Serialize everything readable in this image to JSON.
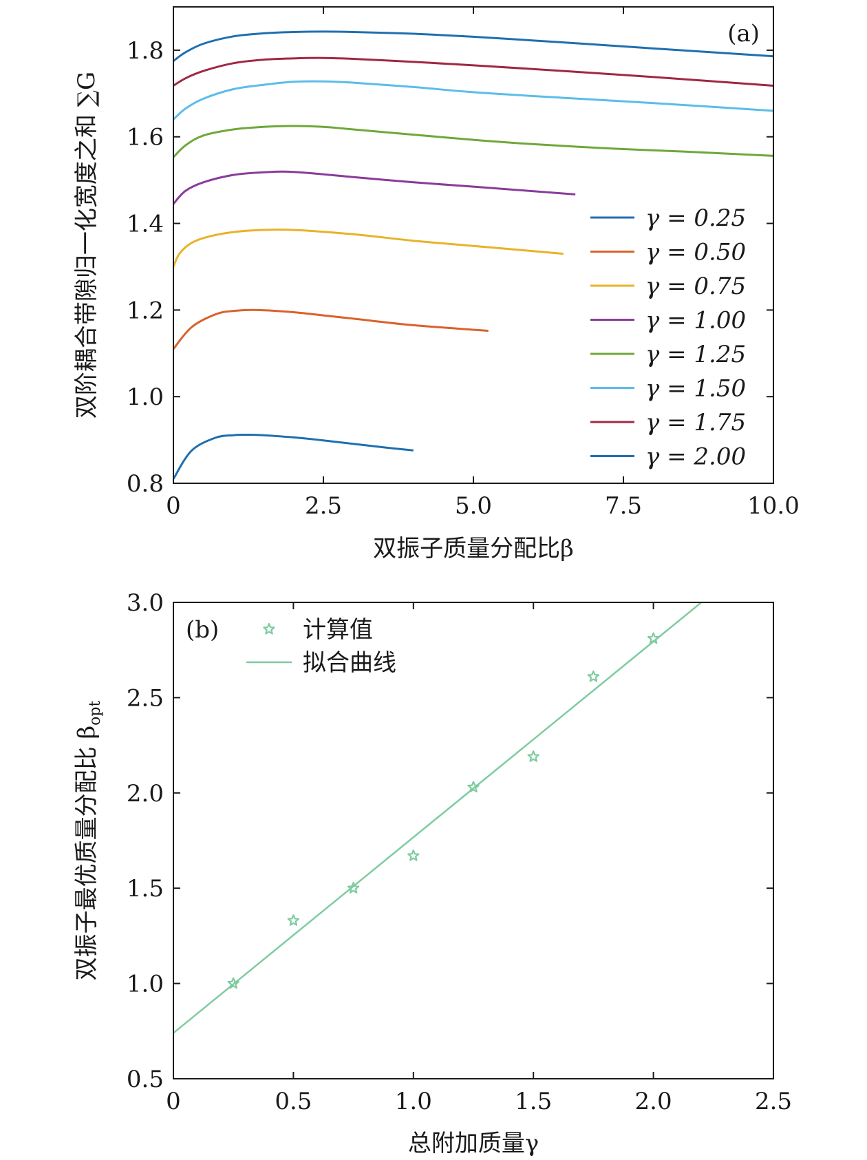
{
  "chart_data": [
    {
      "type": "line",
      "panel": "(a)",
      "xlabel": "双振子质量分配比β",
      "ylabel": "双阶耦合带隙归一化宽度之和 ∑G",
      "xlim": [
        0,
        10
      ],
      "ylim": [
        0.8,
        1.9
      ],
      "xticks": [
        0,
        2.5,
        5.0,
        7.5,
        10.0
      ],
      "xtick_labels": [
        "0",
        "2.5",
        "5.0",
        "7.5",
        "10.0"
      ],
      "yticks": [
        0.8,
        1.0,
        1.2,
        1.4,
        1.6,
        1.8
      ],
      "ytick_labels": [
        "0.8",
        "1.0",
        "1.2",
        "1.4",
        "1.6",
        "1.8"
      ],
      "grid": false,
      "legend_position": "right",
      "series": [
        {
          "name": "γ = 0.25",
          "color": "#1f6fb0",
          "x": [
            0,
            0.3,
            0.7,
            1.0,
            1.2,
            1.5,
            2.0,
            2.5,
            3.0,
            3.5,
            4.0
          ],
          "y": [
            0.81,
            0.875,
            0.905,
            0.911,
            0.912,
            0.911,
            0.906,
            0.899,
            0.891,
            0.883,
            0.876
          ]
        },
        {
          "name": "γ = 0.50",
          "color": "#d9622b",
          "x": [
            0,
            0.3,
            0.7,
            1.0,
            1.4,
            2.0,
            3.0,
            4.0,
            5.25
          ],
          "y": [
            1.11,
            1.16,
            1.19,
            1.198,
            1.2,
            1.195,
            1.18,
            1.165,
            1.152
          ]
        },
        {
          "name": "γ = 0.75",
          "color": "#e8b22a",
          "x": [
            0,
            0.1,
            0.3,
            0.6,
            1.0,
            1.5,
            2.0,
            3.0,
            4.0,
            5.0,
            6.5
          ],
          "y": [
            1.3,
            1.33,
            1.355,
            1.37,
            1.38,
            1.385,
            1.385,
            1.375,
            1.36,
            1.348,
            1.33
          ]
        },
        {
          "name": "γ = 1.00",
          "color": "#8a3b9a",
          "x": [
            0,
            0.2,
            0.5,
            1.0,
            1.5,
            2.0,
            3.0,
            4.0,
            5.0,
            6.7
          ],
          "y": [
            1.445,
            1.475,
            1.495,
            1.512,
            1.518,
            1.519,
            1.507,
            1.495,
            1.485,
            1.467
          ]
        },
        {
          "name": "γ = 1.25",
          "color": "#6ea83a",
          "x": [
            0,
            0.2,
            0.5,
            1.0,
            1.5,
            2.0,
            2.5,
            3.0,
            4.0,
            5.0,
            6.0,
            7.3,
            8.5,
            10.0
          ],
          "y": [
            1.553,
            1.58,
            1.603,
            1.617,
            1.623,
            1.625,
            1.623,
            1.617,
            1.605,
            1.593,
            1.583,
            1.573,
            1.566,
            1.556
          ]
        },
        {
          "name": "γ = 1.50",
          "color": "#5bbde8",
          "x": [
            0,
            0.2,
            0.5,
            1.0,
            1.5,
            2.0,
            2.5,
            3.0,
            4.0,
            5.0,
            6.5,
            8.0,
            10.0
          ],
          "y": [
            1.64,
            1.665,
            1.688,
            1.71,
            1.72,
            1.727,
            1.728,
            1.725,
            1.715,
            1.703,
            1.69,
            1.678,
            1.66
          ]
        },
        {
          "name": "γ = 1.75",
          "color": "#a02842",
          "x": [
            0,
            0.2,
            0.5,
            1.0,
            1.5,
            2.0,
            2.5,
            3.0,
            4.0,
            5.0,
            6.5,
            8.0,
            10.0
          ],
          "y": [
            1.718,
            1.735,
            1.752,
            1.77,
            1.778,
            1.781,
            1.782,
            1.78,
            1.773,
            1.765,
            1.752,
            1.738,
            1.718
          ]
        },
        {
          "name": "γ = 2.00",
          "color": "#1f6fb0",
          "x": [
            0,
            0.2,
            0.5,
            1.0,
            1.5,
            2.0,
            2.5,
            3.0,
            4.0,
            5.0,
            6.5,
            8.0,
            10.0
          ],
          "y": [
            1.775,
            1.795,
            1.815,
            1.832,
            1.839,
            1.842,
            1.843,
            1.842,
            1.838,
            1.831,
            1.818,
            1.804,
            1.786
          ]
        }
      ]
    },
    {
      "type": "scatter",
      "panel": "(b)",
      "xlabel": "总附加质量γ",
      "ylabel": "双振子最优质量分配比 β",
      "ylabel_subscript": "opt",
      "xlim": [
        0,
        2.5
      ],
      "ylim": [
        0.5,
        3.0
      ],
      "xticks": [
        0,
        0.5,
        1.0,
        1.5,
        2.0,
        2.5
      ],
      "xtick_labels": [
        "0",
        "0.5",
        "1.0",
        "1.5",
        "2.0",
        "2.5"
      ],
      "yticks": [
        0.5,
        1.0,
        1.5,
        2.0,
        2.5,
        3.0
      ],
      "ytick_labels": [
        "0.5",
        "1.0",
        "1.5",
        "2.0",
        "2.5",
        "3.0"
      ],
      "grid": false,
      "legend_position": "top-left",
      "color": "#7ecba0",
      "series": [
        {
          "name": "计算值",
          "kind": "markers",
          "marker": "star",
          "x": [
            0.25,
            0.5,
            0.75,
            1.0,
            1.25,
            1.5,
            1.75,
            2.0
          ],
          "y": [
            1.0,
            1.33,
            1.5,
            1.67,
            2.03,
            2.19,
            2.61,
            2.81
          ]
        },
        {
          "name": "拟合曲线",
          "kind": "line",
          "x": [
            0,
            2.2
          ],
          "y": [
            0.74,
            3.0
          ]
        }
      ]
    }
  ]
}
